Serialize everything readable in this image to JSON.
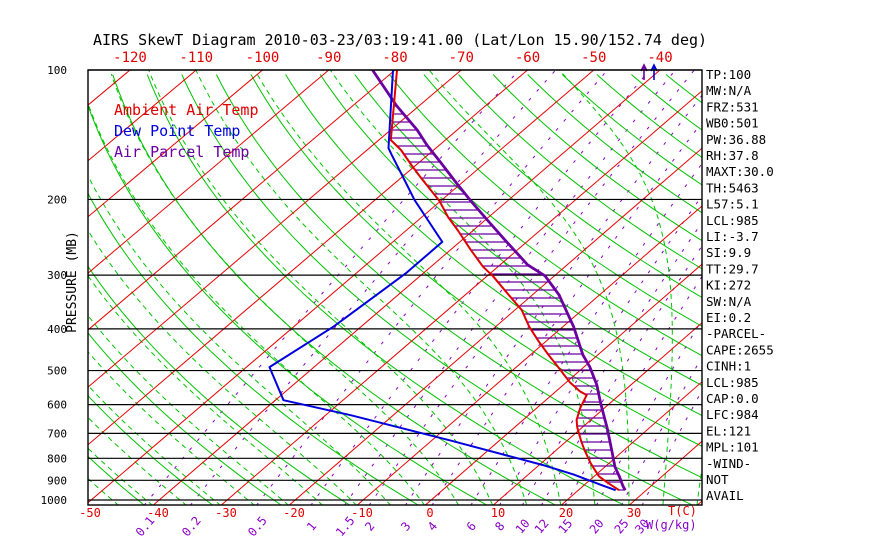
{
  "title": "AIRS SkewT Diagram 2010-03-23/03:19:41.00 (Lat/Lon 15.90/152.74 deg)",
  "colors": {
    "ambient": "#e00000",
    "dewpoint": "#0000dd",
    "parcel": "#6a00a0",
    "isotherm": "#e80000",
    "dry_adiabat": "#00c300",
    "moist_adiabat": "#00c300",
    "mixing_ratio": "#8a00c8",
    "grid": "#000000"
  },
  "legend": [
    {
      "label": "Ambient Air Temp",
      "series": "ambient"
    },
    {
      "label": "Dew Point Temp",
      "series": "dewpoint"
    },
    {
      "label": "Air Parcel Temp",
      "series": "parcel"
    }
  ],
  "axes": {
    "pressure_label": "PRESSURE (MB)",
    "pressure_ticks": [
      100,
      200,
      300,
      400,
      500,
      600,
      700,
      800,
      900,
      1000
    ],
    "top_temp_ticks": [
      -120,
      -110,
      -100,
      -90,
      -80,
      -70,
      -60,
      -50,
      -40
    ],
    "bottom_temp_ticks": [
      -50,
      -40,
      -30,
      -20,
      -10,
      0,
      10,
      20,
      30
    ],
    "temp_unit_label": "T(C)",
    "mixing_ratio_ticks": [
      0.1,
      0.2,
      0.5,
      1,
      1.5,
      2,
      3,
      4,
      6,
      8,
      10,
      12,
      15,
      20,
      25,
      30
    ],
    "mixing_ratio_unit_label": "W(g/kg)"
  },
  "panel": {
    "items": [
      "TP:100",
      "MW:N/A",
      "FRZ:531",
      "WB0:501",
      "PW:36.88",
      "RH:37.8",
      "MAXT:30.0",
      "TH:5463",
      "L57:5.1",
      "LCL:985",
      "LI:-3.7",
      "SI:9.9",
      "TT:29.7",
      "KI:272",
      "SW:N/A",
      "EI:0.2",
      "-PARCEL-",
      "CAPE:2655",
      "CINH:1",
      "LCL:985",
      "CAP:0.0",
      "LFC:984",
      "EL:121",
      "MPL:101",
      "-WIND-",
      "NOT",
      "AVAIL"
    ]
  },
  "chart_data": {
    "type": "line",
    "title": "AIRS SkewT Diagram 2010-03-23/03:19:41.00 (Lat/Lon 15.90/152.74 deg)",
    "xlabel": "T(C)",
    "ylabel": "PRESSURE (MB)",
    "x_axis": {
      "bottom_ticks": [
        -50,
        -40,
        -30,
        -20,
        -10,
        0,
        10,
        20,
        30
      ],
      "top_ticks": [
        -120,
        -110,
        -100,
        -90,
        -80,
        -70,
        -60,
        -50,
        -40
      ],
      "skew": true
    },
    "y_axis": {
      "scale": "log",
      "range": [
        100,
        1030
      ],
      "ticks": [
        100,
        200,
        300,
        400,
        500,
        600,
        700,
        800,
        900,
        1000
      ]
    },
    "secondary_x_axis": {
      "label": "W(g/kg)",
      "ticks": [
        0.1,
        0.2,
        0.5,
        1,
        1.5,
        2,
        3,
        4,
        6,
        8,
        10,
        12,
        15,
        20,
        25,
        30
      ]
    },
    "grid": {
      "isotherms_degC": [
        -160,
        40,
        10
      ],
      "dry_adiabats_thetaK": [
        230,
        450,
        10
      ],
      "moist_adiabats_surface_degC": [
        -45,
        40,
        5
      ]
    },
    "hatch_between": [
      "ambient",
      "parcel"
    ],
    "series": [
      {
        "name": "Ambient Air Temp",
        "key": "ambient",
        "points_p_t": [
          [
            100,
            -79.7
          ],
          [
            145.5,
            -68.2
          ],
          [
            153.5,
            -64.9
          ],
          [
            166.3,
            -60.7
          ],
          [
            177.5,
            -57.2
          ],
          [
            201.6,
            -50.2
          ],
          [
            219.7,
            -46.1
          ],
          [
            235.5,
            -42.4
          ],
          [
            261.9,
            -37.0
          ],
          [
            286.9,
            -32.2
          ],
          [
            301.1,
            -29.2
          ],
          [
            328.8,
            -24.3
          ],
          [
            361.5,
            -19.0
          ],
          [
            395.4,
            -15.0
          ],
          [
            428.4,
            -11.0
          ],
          [
            459.9,
            -7.3
          ],
          [
            490.7,
            -3.8
          ],
          [
            532.1,
            0.5
          ],
          [
            558.3,
            3.5
          ],
          [
            570.3,
            5.2
          ],
          [
            610.3,
            6.4
          ],
          [
            651.2,
            7.9
          ],
          [
            678.6,
            9.3
          ],
          [
            732.1,
            12.3
          ],
          [
            766.0,
            14.2
          ],
          [
            821.4,
            17.3
          ],
          [
            880.8,
            20.7
          ],
          [
            912.0,
            23.1
          ],
          [
            949,
            26.0
          ]
        ]
      },
      {
        "name": "Dew Point Temp",
        "key": "dewpoint",
        "points_p_t": [
          [
            100,
            -80.3
          ],
          [
            152,
            -67.1
          ],
          [
            157.7,
            -65.4
          ],
          [
            180.2,
            -59.1
          ],
          [
            200.5,
            -54.1
          ],
          [
            223.3,
            -48.6
          ],
          [
            251.1,
            -42.6
          ],
          [
            296.9,
            -42.6
          ],
          [
            395.4,
            -44.1
          ],
          [
            490.7,
            -46.6
          ],
          [
            586.0,
            -38.8
          ],
          [
            634.9,
            -26.3
          ],
          [
            728.4,
            -7.0
          ],
          [
            829.6,
            10.6
          ],
          [
            872.6,
            16.7
          ],
          [
            926.5,
            22.9
          ],
          [
            949,
            25.5
          ]
        ]
      },
      {
        "name": "Air Parcel Temp",
        "key": "parcel",
        "points_p_t": [
          [
            100,
            -83.4
          ],
          [
            120.9,
            -73.5
          ],
          [
            137.9,
            -66.0
          ],
          [
            149.4,
            -61.9
          ],
          [
            164.5,
            -56.6
          ],
          [
            183.1,
            -50.8
          ],
          [
            201.6,
            -45.5
          ],
          [
            223.3,
            -39.7
          ],
          [
            248.4,
            -33.6
          ],
          [
            283.8,
            -25.9
          ],
          [
            301.1,
            -21.4
          ],
          [
            333.7,
            -16.0
          ],
          [
            395.4,
            -8.4
          ],
          [
            459.9,
            -2.2
          ],
          [
            490.7,
            0.9
          ],
          [
            540.4,
            5.0
          ],
          [
            591.9,
            8.4
          ],
          [
            651.2,
            12.1
          ],
          [
            678.6,
            13.7
          ],
          [
            766.0,
            18.2
          ],
          [
            837.9,
            21.5
          ],
          [
            880.8,
            23.7
          ],
          [
            926.5,
            25.8
          ],
          [
            949,
            26.9
          ]
        ]
      }
    ]
  }
}
